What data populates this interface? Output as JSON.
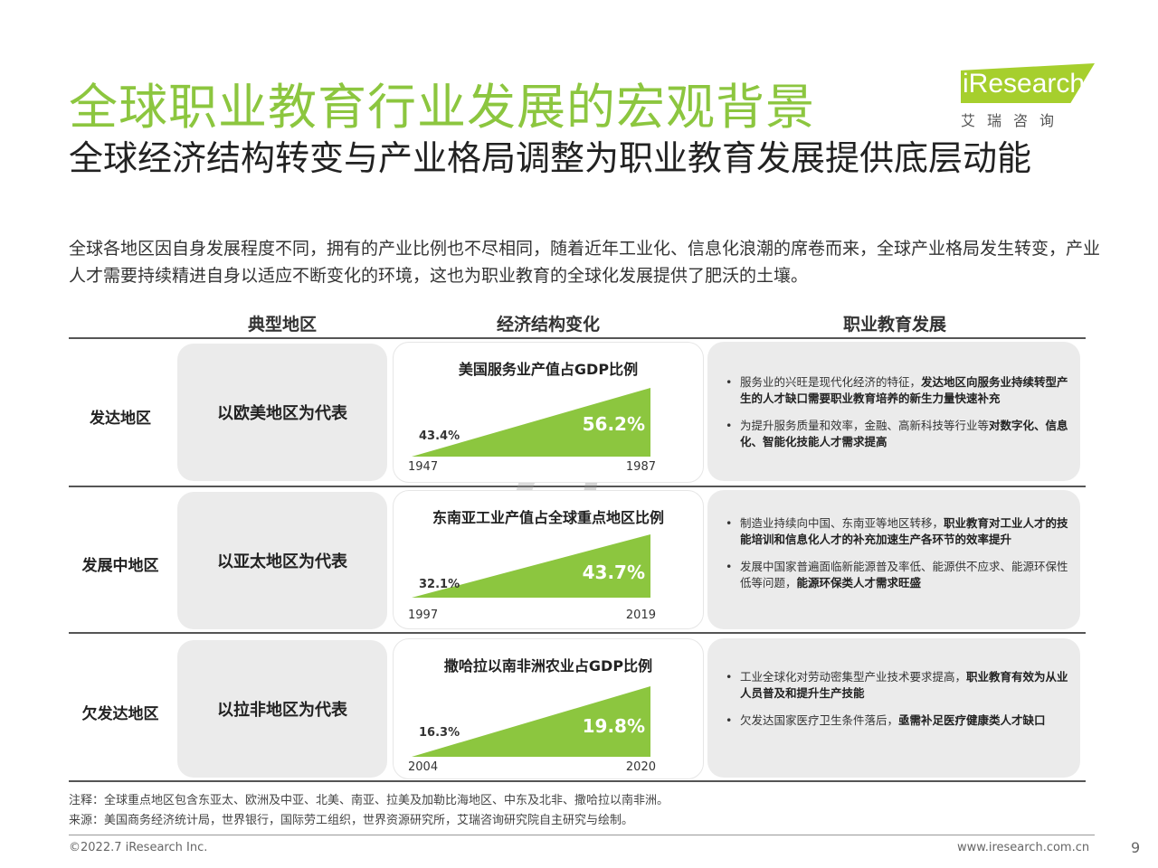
{
  "title": "全球职业教育行业发展的宏观背景",
  "logo": {
    "brand": "iResearch",
    "chinese": "艾瑞咨询"
  },
  "subtitle": "全球经济结构转变与产业格局调整为职业教育发展提供底层动能",
  "intro": "全球各地区因自身发展程度不同，拥有的产业比例也不尽相同，随着近年工业化、信息化浪潮的席卷而来，全球产业格局发生转变，产业人才需要持续精进自身以适应不断变化的环境，这也为职业教育的全球化发展提供了肥沃的土壤。",
  "headers": [
    "典型地区",
    "经济结构变化",
    "职业教育发展"
  ],
  "rows": [
    {
      "label": "发达地区",
      "representative": "以欧美地区为代表",
      "chart": {
        "title": "美国服务业产值占GDP比例",
        "start_value": "43.4%",
        "end_value": "56.2%",
        "start_year": "1947",
        "end_year": "1987"
      },
      "bullets": [
        {
          "text": "服务业的兴旺是现代化经济的特征，",
          "bold": "发达地区向服务业持续转型产生的人才缺口需要职业教育培养的新生力量快速补充"
        },
        {
          "text": "为提升服务质量和效率，金融、高新科技等行业等",
          "bold": "对数字化、信息化、智能化技能人才需求提高"
        }
      ]
    },
    {
      "label": "发展中地区",
      "representative": "以亚太地区为代表",
      "chart": {
        "title": "东南亚工业产值占全球重点地区比例",
        "start_value": "32.1%",
        "end_value": "43.7%",
        "start_year": "1997",
        "end_year": "2019"
      },
      "bullets": [
        {
          "text": "制造业持续向中国、东南亚等地区转移，",
          "bold": "职业教育对工业人才的技能培训和信息化人才的补充加速生产各环节的效率提升"
        },
        {
          "text": "发展中国家普遍面临新能源普及率低、能源供不应求、能源环保性低等问题，",
          "bold": "能源环保类人才需求旺盛"
        }
      ]
    },
    {
      "label": "欠发达地区",
      "representative": "以拉非地区为代表",
      "chart": {
        "title": "撒哈拉以南非洲农业占GDP比例",
        "start_value": "16.3%",
        "end_value": "19.8%",
        "start_year": "2004",
        "end_year": "2020"
      },
      "bullets": [
        {
          "text": "工业全球化对劳动密集型产业技术要求提高，",
          "bold": "职业教育有效为从业人员普及和提升生产技能"
        },
        {
          "text": "欠发达国家医疗卫生条件落后，",
          "bold": "亟需补足医疗健康类人才缺口"
        }
      ]
    }
  ],
  "note": "注释：全球重点地区包含东亚太、欧洲及中亚、北美、南亚、拉美及加勒比海地区、中东及北非、撒哈拉以南非洲。",
  "source": "来源：美国商务经济统计局，世界银行，国际劳工组织，世界资源研究所，艾瑞咨询研究院自主研究与绘制。",
  "footer": {
    "copyright": "©2022.7 iResearch Inc.",
    "website": "www.iresearch.com.cn",
    "page": "9"
  },
  "colors": {
    "accent": "#8cc63f",
    "logo": "#a6cf2d",
    "box": "#ebebeb"
  }
}
